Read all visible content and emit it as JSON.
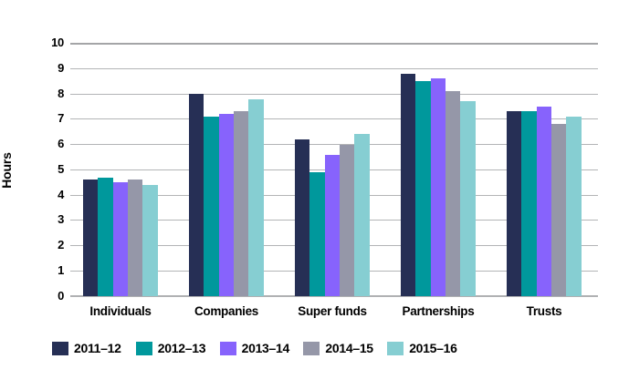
{
  "chart_data": {
    "type": "bar",
    "title": "",
    "xlabel": "",
    "ylabel": "Hours",
    "ylim": [
      0,
      10
    ],
    "yticks": [
      0,
      1,
      2,
      3,
      4,
      5,
      6,
      7,
      8,
      9,
      10
    ],
    "grid": "horizontal",
    "legend_position": "bottom",
    "categories": [
      "Individuals",
      "Companies",
      "Super funds",
      "Partnerships",
      "Trusts"
    ],
    "series": [
      {
        "name": "2011–12",
        "color": "#262f55",
        "values": [
          4.6,
          8.0,
          6.2,
          8.8,
          7.3
        ]
      },
      {
        "name": "2012–13",
        "color": "#00989c",
        "values": [
          4.7,
          7.1,
          4.9,
          8.5,
          7.3
        ]
      },
      {
        "name": "2013–14",
        "color": "#8763fc",
        "values": [
          4.5,
          7.2,
          5.6,
          8.6,
          7.5
        ]
      },
      {
        "name": "2014–15",
        "color": "#9597a8",
        "values": [
          4.6,
          7.3,
          6.0,
          8.1,
          6.8
        ]
      },
      {
        "name": "2015–16",
        "color": "#86ced2",
        "values": [
          4.4,
          7.8,
          6.4,
          7.7,
          7.1
        ]
      }
    ]
  },
  "colors": {
    "background": "#ffffff",
    "gridline": "#b3b4b6",
    "gridline_top": "#a4a5a7",
    "baseline": "#b0b1b3",
    "axis_text": "#000000"
  }
}
